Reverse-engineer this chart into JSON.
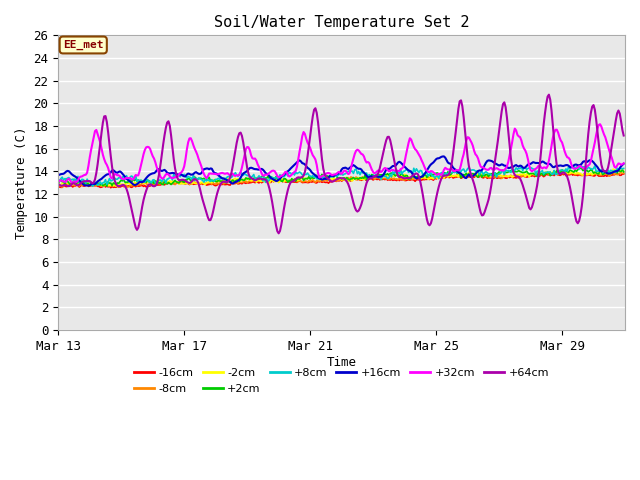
{
  "title": "Soil/Water Temperature Set 2",
  "xlabel": "Time",
  "ylabel": "Temperature (C)",
  "annotation_text": "EE_met",
  "annotation_bg": "#ffffcc",
  "annotation_border": "#884400",
  "annotation_text_color": "#880000",
  "ylim": [
    0,
    26
  ],
  "yticks": [
    0,
    2,
    4,
    6,
    8,
    10,
    12,
    14,
    16,
    18,
    20,
    22,
    24,
    26
  ],
  "x_start_day": 13,
  "x_total_days": 18,
  "x_tick_days": [
    13,
    17,
    21,
    25,
    29
  ],
  "x_tick_labels": [
    "Mar 13",
    "Mar 17",
    "Mar 21",
    "Mar 25",
    "Mar 29"
  ],
  "series_order": [
    "-16cm",
    "-8cm",
    "-2cm",
    "+2cm",
    "+8cm",
    "+16cm",
    "+32cm",
    "+64cm"
  ],
  "series_colors": {
    "-16cm": "#ff0000",
    "-8cm": "#ff8800",
    "-2cm": "#ffff00",
    "+2cm": "#00cc00",
    "+8cm": "#00cccc",
    "+16cm": "#0000cc",
    "+32cm": "#ff00ff",
    "+64cm": "#aa00aa"
  },
  "series_linewidths": {
    "-16cm": 1.2,
    "-8cm": 1.2,
    "-2cm": 1.2,
    "+2cm": 1.2,
    "+8cm": 1.2,
    "+16cm": 1.5,
    "+32cm": 1.5,
    "+64cm": 1.5
  },
  "plot_bg_color": "#e8e8e8",
  "grid_color": "#ffffff",
  "figsize": [
    6.4,
    4.8
  ],
  "dpi": 100
}
